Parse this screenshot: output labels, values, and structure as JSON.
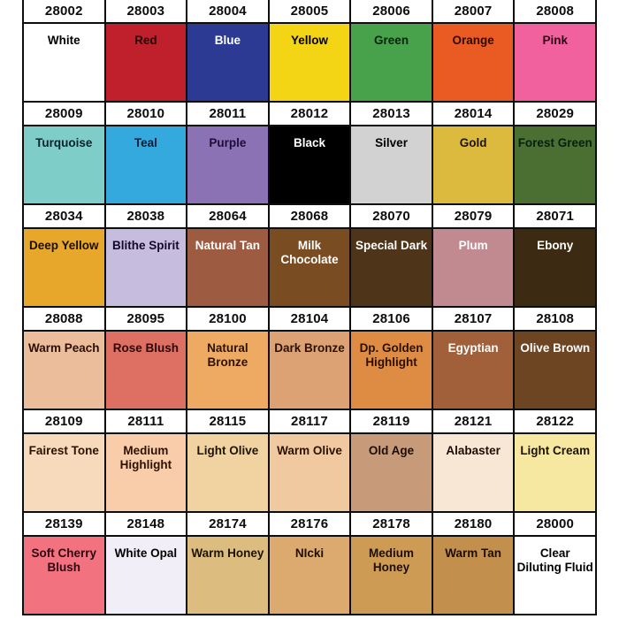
{
  "chart_data": {
    "type": "table",
    "description": "Color swatch reference chart: 6 banded rows, each with a product code header row and a color swatch row",
    "columns": 7,
    "grid_line_color": "#0d0d0d",
    "code_row_background": "#ffffff",
    "rows": [
      {
        "cells": [
          {
            "code": "28002",
            "name": "White",
            "color": "#ffffff",
            "text_color": "#000000"
          },
          {
            "code": "28003",
            "name": "Red",
            "color": "#bf202b",
            "text_color": "#1c0505"
          },
          {
            "code": "28004",
            "name": "Blue",
            "color": "#2d3a94",
            "text_color": "#ffffff"
          },
          {
            "code": "28005",
            "name": "Yellow",
            "color": "#f3d516",
            "text_color": "#000000"
          },
          {
            "code": "28006",
            "name": "Green",
            "color": "#47a24b",
            "text_color": "#05200a"
          },
          {
            "code": "28007",
            "name": "Orange",
            "color": "#e95b22",
            "text_color": "#2b0a00"
          },
          {
            "code": "28008",
            "name": "Pink",
            "color": "#f1619e",
            "text_color": "#2b0515"
          }
        ]
      },
      {
        "cells": [
          {
            "code": "28009",
            "name": "Turquoise",
            "color": "#7ecdc9",
            "text_color": "#06222b"
          },
          {
            "code": "28010",
            "name": "Teal",
            "color": "#34a9de",
            "text_color": "#041a33"
          },
          {
            "code": "28011",
            "name": "Purple",
            "color": "#8a72b5",
            "text_color": "#1d0d36"
          },
          {
            "code": "28012",
            "name": "Black",
            "color": "#000000",
            "text_color": "#ffffff"
          },
          {
            "code": "28013",
            "name": "Silver",
            "color": "#d2d2d3",
            "text_color": "#000000"
          },
          {
            "code": "28014",
            "name": "Gold",
            "color": "#dcba3e",
            "text_color": "#1c1300"
          },
          {
            "code": "28029",
            "name": "Forest Green",
            "color": "#4b6e33",
            "text_color": "#06200d"
          }
        ]
      },
      {
        "cells": [
          {
            "code": "28034",
            "name": "Deep Yellow",
            "color": "#e6a72a",
            "text_color": "#1a0e00"
          },
          {
            "code": "28038",
            "name": "Blithe Spirit",
            "color": "#c6bcdd",
            "text_color": "#15082b"
          },
          {
            "code": "28064",
            "name": "Natural Tan",
            "color": "#9d5b41",
            "text_color": "#ffffff"
          },
          {
            "code": "28068",
            "name": "Milk Chocolate",
            "color": "#794c22",
            "text_color": "#ffffff"
          },
          {
            "code": "28070",
            "name": "Special Dark",
            "color": "#4e3418",
            "text_color": "#ffffff"
          },
          {
            "code": "28079",
            "name": "Plum",
            "color": "#c08a90",
            "text_color": "#ffffff"
          },
          {
            "code": "28071",
            "name": "Ebony",
            "color": "#3c2a12",
            "text_color": "#ffffff"
          }
        ]
      },
      {
        "cells": [
          {
            "code": "28088",
            "name": "Warm Peach",
            "color": "#ecbd9b",
            "text_color": "#2b0f05"
          },
          {
            "code": "28095",
            "name": "Rose Blush",
            "color": "#de7063",
            "text_color": "#2b0505"
          },
          {
            "code": "28100",
            "name": "Natural Bronze",
            "color": "#eeaa63",
            "text_color": "#2b1200"
          },
          {
            "code": "28104",
            "name": "Dark Bronze",
            "color": "#dda274",
            "text_color": "#2b1200"
          },
          {
            "code": "28106",
            "name": "Dp. Golden Highlight",
            "color": "#de8c43",
            "text_color": "#2b1000"
          },
          {
            "code": "28107",
            "name": "Egyptian",
            "color": "#a15f3a",
            "text_color": "#ffffff"
          },
          {
            "code": "28108",
            "name": "Olive Brown",
            "color": "#6d4523",
            "text_color": "#ffffff"
          }
        ]
      },
      {
        "cells": [
          {
            "code": "28109",
            "name": "Fairest Tone",
            "color": "#f7dabb",
            "text_color": "#2b1200"
          },
          {
            "code": "28111",
            "name": "Medium Highlight",
            "color": "#f9cda9",
            "text_color": "#2b1200"
          },
          {
            "code": "28115",
            "name": "Light Olive",
            "color": "#f1d3a1",
            "text_color": "#1c1300"
          },
          {
            "code": "28117",
            "name": "Warm Olive",
            "color": "#f0c9a0",
            "text_color": "#2b1200"
          },
          {
            "code": "28119",
            "name": "Old Age",
            "color": "#c79b7a",
            "text_color": "#1c0e05"
          },
          {
            "code": "28121",
            "name": "Alabaster",
            "color": "#f9e7d6",
            "text_color": "#1c0e05"
          },
          {
            "code": "28122",
            "name": "Light Cream",
            "color": "#f6e8a1",
            "text_color": "#1c1300"
          }
        ]
      },
      {
        "cells": [
          {
            "code": "28139",
            "name": "Soft Cherry Blush",
            "color": "#f3727f",
            "text_color": "#2b0510"
          },
          {
            "code": "28148",
            "name": "White Opal",
            "color": "#f2eef7",
            "text_color": "#000000"
          },
          {
            "code": "28174",
            "name": "Warm Honey",
            "color": "#dcbd7f",
            "text_color": "#1c1300"
          },
          {
            "code": "28176",
            "name": "NIcki",
            "color": "#dcaa6e",
            "text_color": "#1c0e00"
          },
          {
            "code": "28178",
            "name": "Medium Honey",
            "color": "#ce9b55",
            "text_color": "#1c0e00"
          },
          {
            "code": "28180",
            "name": "Warm Tan",
            "color": "#c28f4d",
            "text_color": "#1c0e00"
          },
          {
            "code": "28000",
            "name": "Clear Diluting Fluid",
            "color": "#ffffff",
            "text_color": "#000000"
          }
        ]
      }
    ]
  }
}
